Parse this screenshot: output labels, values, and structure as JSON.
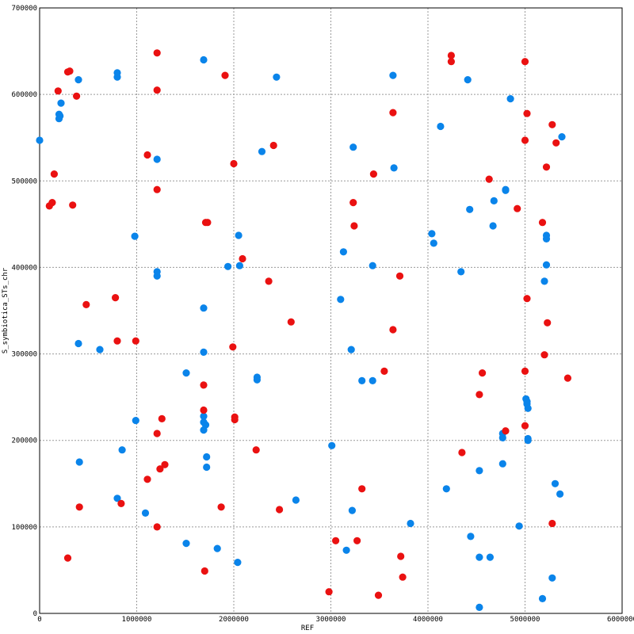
{
  "chart_data": {
    "type": "scatter",
    "xlabel": "REF",
    "ylabel": "S_symbiotica_STs_chr",
    "xlim": [
      0,
      6000000
    ],
    "ylim": [
      0,
      700000
    ],
    "x_ticks": [
      0,
      1000000,
      2000000,
      3000000,
      4000000,
      5000000,
      6000000
    ],
    "y_ticks": [
      0,
      100000,
      200000,
      300000,
      400000,
      500000,
      600000,
      700000
    ],
    "x_tick_labels": [
      "0",
      "1000000",
      "2000000",
      "3000000",
      "4000000",
      "5000000",
      "6000000"
    ],
    "y_tick_labels": [
      "0",
      "100000",
      "200000",
      "300000",
      "400000",
      "500000",
      "600000",
      "700000"
    ],
    "grid": true,
    "series": [
      {
        "color": "#0a84ea",
        "points": [
          [
            0,
            547000
          ],
          [
            200000,
            577000
          ],
          [
            210000,
            575000
          ],
          [
            220000,
            590000
          ],
          [
            200000,
            572000
          ],
          [
            400000,
            617000
          ],
          [
            400000,
            312000
          ],
          [
            410000,
            175000
          ],
          [
            620000,
            305000
          ],
          [
            800000,
            625000
          ],
          [
            800000,
            620000
          ],
          [
            800000,
            133000
          ],
          [
            850000,
            189000
          ],
          [
            980000,
            436000
          ],
          [
            990000,
            223000
          ],
          [
            1090000,
            116000
          ],
          [
            1210000,
            525000
          ],
          [
            1210000,
            395000
          ],
          [
            1210000,
            390000
          ],
          [
            1510000,
            278000
          ],
          [
            1510000,
            81000
          ],
          [
            1690000,
            640000
          ],
          [
            1690000,
            353000
          ],
          [
            1690000,
            302000
          ],
          [
            1690000,
            228000
          ],
          [
            1690000,
            221000
          ],
          [
            1690000,
            212000
          ],
          [
            1710000,
            218000
          ],
          [
            1720000,
            181000
          ],
          [
            1720000,
            169000
          ],
          [
            1830000,
            75000
          ],
          [
            1940000,
            401000
          ],
          [
            2050000,
            437000
          ],
          [
            2060000,
            402000
          ],
          [
            2040000,
            59000
          ],
          [
            2240000,
            273000
          ],
          [
            2240000,
            270000
          ],
          [
            2290000,
            534000
          ],
          [
            2440000,
            620000
          ],
          [
            2640000,
            131000
          ],
          [
            3010000,
            194000
          ],
          [
            3100000,
            363000
          ],
          [
            3130000,
            418000
          ],
          [
            3160000,
            73000
          ],
          [
            3210000,
            305000
          ],
          [
            3220000,
            119000
          ],
          [
            3230000,
            539000
          ],
          [
            3320000,
            269000
          ],
          [
            3430000,
            402000
          ],
          [
            3430000,
            269000
          ],
          [
            3640000,
            622000
          ],
          [
            3650000,
            515000
          ],
          [
            3820000,
            104000
          ],
          [
            4040000,
            439000
          ],
          [
            4060000,
            428000
          ],
          [
            4130000,
            563000
          ],
          [
            4190000,
            144000
          ],
          [
            4410000,
            617000
          ],
          [
            4430000,
            467000
          ],
          [
            4440000,
            89000
          ],
          [
            4340000,
            395000
          ],
          [
            4530000,
            165000
          ],
          [
            4530000,
            65000
          ],
          [
            4530000,
            7000
          ],
          [
            4640000,
            65000
          ],
          [
            4670000,
            448000
          ],
          [
            4680000,
            477000
          ],
          [
            4770000,
            203000
          ],
          [
            4770000,
            208000
          ],
          [
            4770000,
            173000
          ],
          [
            4800000,
            489000
          ],
          [
            4800000,
            490000
          ],
          [
            4850000,
            595000
          ],
          [
            4940000,
            101000
          ],
          [
            5010000,
            248000
          ],
          [
            5020000,
            245000
          ],
          [
            5020000,
            242000
          ],
          [
            5030000,
            237000
          ],
          [
            5030000,
            200000
          ],
          [
            5180000,
            17000
          ],
          [
            5200000,
            384000
          ],
          [
            5220000,
            437000
          ],
          [
            5220000,
            433000
          ],
          [
            5220000,
            403000
          ],
          [
            5280000,
            41000
          ],
          [
            5310000,
            150000
          ],
          [
            5360000,
            138000
          ],
          [
            5380000,
            551000
          ],
          [
            5030000,
            202000
          ]
        ]
      },
      {
        "color": "#ea1111",
        "points": [
          [
            100000,
            471000
          ],
          [
            130000,
            475000
          ],
          [
            150000,
            508000
          ],
          [
            190000,
            604000
          ],
          [
            290000,
            626000
          ],
          [
            310000,
            627000
          ],
          [
            340000,
            472000
          ],
          [
            380000,
            598000
          ],
          [
            410000,
            123000
          ],
          [
            480000,
            357000
          ],
          [
            290000,
            64000
          ],
          [
            780000,
            365000
          ],
          [
            800000,
            315000
          ],
          [
            840000,
            127000
          ],
          [
            990000,
            315000
          ],
          [
            1110000,
            530000
          ],
          [
            1110000,
            155000
          ],
          [
            1210000,
            648000
          ],
          [
            1210000,
            605000
          ],
          [
            1210000,
            490000
          ],
          [
            1210000,
            208000
          ],
          [
            1210000,
            100000
          ],
          [
            1240000,
            167000
          ],
          [
            1260000,
            225000
          ],
          [
            1290000,
            172000
          ],
          [
            1690000,
            264000
          ],
          [
            1690000,
            235000
          ],
          [
            1700000,
            49000
          ],
          [
            1710000,
            452000
          ],
          [
            1730000,
            452000
          ],
          [
            1870000,
            123000
          ],
          [
            1910000,
            622000
          ],
          [
            1990000,
            308000
          ],
          [
            2000000,
            520000
          ],
          [
            2010000,
            227000
          ],
          [
            2010000,
            224000
          ],
          [
            2090000,
            410000
          ],
          [
            2230000,
            189000
          ],
          [
            2360000,
            384000
          ],
          [
            2410000,
            541000
          ],
          [
            2470000,
            120000
          ],
          [
            2590000,
            337000
          ],
          [
            2980000,
            25000
          ],
          [
            3050000,
            84000
          ],
          [
            3230000,
            475000
          ],
          [
            3240000,
            448000
          ],
          [
            3270000,
            84000
          ],
          [
            3320000,
            144000
          ],
          [
            3440000,
            508000
          ],
          [
            3490000,
            21000
          ],
          [
            3550000,
            280000
          ],
          [
            3640000,
            579000
          ],
          [
            3640000,
            328000
          ],
          [
            3710000,
            390000
          ],
          [
            3720000,
            66000
          ],
          [
            3740000,
            42000
          ],
          [
            4240000,
            645000
          ],
          [
            4240000,
            638000
          ],
          [
            4350000,
            186000
          ],
          [
            4530000,
            253000
          ],
          [
            4560000,
            278000
          ],
          [
            4630000,
            502000
          ],
          [
            4800000,
            211000
          ],
          [
            4920000,
            468000
          ],
          [
            5000000,
            638000
          ],
          [
            5000000,
            547000
          ],
          [
            5000000,
            280000
          ],
          [
            5000000,
            217000
          ],
          [
            5020000,
            578000
          ],
          [
            5020000,
            364000
          ],
          [
            5180000,
            452000
          ],
          [
            5200000,
            299000
          ],
          [
            5220000,
            516000
          ],
          [
            5230000,
            336000
          ],
          [
            5280000,
            565000
          ],
          [
            5280000,
            104000
          ],
          [
            5320000,
            544000
          ],
          [
            5440000,
            272000
          ]
        ]
      }
    ]
  }
}
